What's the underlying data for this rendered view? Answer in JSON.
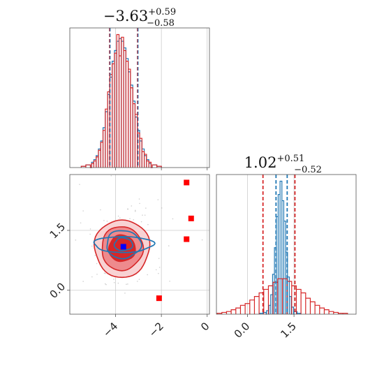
{
  "colors": {
    "blue": "#1f77b4",
    "red": "#d62728",
    "marker_blue": "#0000ff",
    "marker_red": "#ff0000"
  },
  "titles": {
    "p1": {
      "main": "−3.63",
      "sup": "+0.59",
      "sub": "−0.58"
    },
    "p2": {
      "main": "1.02",
      "sup": "+0.51",
      "sub": "−0.52"
    }
  },
  "chart_data": [
    {
      "type": "histogram",
      "panel": "marginal-p1",
      "xlim": [
        -6.0,
        0.1
      ],
      "xticks": [
        -4,
        -2,
        0
      ],
      "grid": true,
      "quantile_lines": {
        "red": [
          -4.26,
          -3.04
        ],
        "blue": [
          -4.26,
          -3.04
        ]
      },
      "series": [
        {
          "color": "blue",
          "centers": [
            -5.4,
            -5.2,
            -5.0,
            -4.9,
            -4.8,
            -4.7,
            -4.6,
            -4.5,
            -4.4,
            -4.3,
            -4.2,
            -4.1,
            -4.0,
            -3.9,
            -3.8,
            -3.7,
            -3.6,
            -3.5,
            -3.4,
            -3.3,
            -3.2,
            -3.1,
            -3.0,
            -2.9,
            -2.8,
            -2.7,
            -2.6,
            -2.5,
            -2.3,
            -2.1
          ],
          "counts": [
            1,
            2,
            4,
            6,
            9,
            14,
            20,
            30,
            42,
            55,
            68,
            80,
            88,
            95,
            97,
            95,
            90,
            82,
            72,
            62,
            50,
            38,
            28,
            20,
            14,
            9,
            6,
            3,
            2,
            1
          ]
        },
        {
          "color": "red",
          "centers": [
            -5.4,
            -5.2,
            -5.0,
            -4.9,
            -4.8,
            -4.7,
            -4.6,
            -4.5,
            -4.4,
            -4.3,
            -4.2,
            -4.1,
            -4.0,
            -3.9,
            -3.8,
            -3.7,
            -3.6,
            -3.5,
            -3.4,
            -3.3,
            -3.2,
            -3.1,
            -3.0,
            -2.9,
            -2.8,
            -2.7,
            -2.6,
            -2.5,
            -2.3,
            -2.1
          ],
          "counts": [
            1,
            2,
            3,
            5,
            8,
            13,
            19,
            28,
            44,
            57,
            70,
            78,
            86,
            100,
            84,
            98,
            88,
            80,
            74,
            60,
            48,
            40,
            26,
            22,
            12,
            10,
            5,
            4,
            2,
            1
          ]
        }
      ]
    },
    {
      "type": "histogram",
      "panel": "marginal-p2",
      "xlim": [
        -1.0,
        3.5
      ],
      "xticks": [
        0.0,
        1.5
      ],
      "grid": true,
      "quantile_lines": {
        "red": [
          0.5,
          1.53
        ],
        "blue": [
          0.92,
          1.28
        ]
      },
      "series": [
        {
          "color": "blue",
          "centers": [
            0.45,
            0.55,
            0.65,
            0.72,
            0.78,
            0.84,
            0.9,
            0.96,
            1.02,
            1.08,
            1.14,
            1.2,
            1.26,
            1.32,
            1.38,
            1.45,
            1.55,
            1.65
          ],
          "counts": [
            1,
            2,
            4,
            10,
            22,
            45,
            75,
            110,
            135,
            150,
            128,
            105,
            70,
            42,
            20,
            8,
            3,
            1
          ]
        },
        {
          "color": "red",
          "centers": [
            -0.9,
            -0.75,
            -0.6,
            -0.45,
            -0.3,
            -0.15,
            0.0,
            0.15,
            0.3,
            0.45,
            0.6,
            0.75,
            0.9,
            1.05,
            1.2,
            1.35,
            1.5,
            1.65,
            1.8,
            1.95,
            2.1,
            2.25,
            2.4,
            2.55,
            2.7,
            2.85,
            3.0,
            3.15
          ],
          "counts": [
            1,
            2,
            3,
            5,
            7,
            10,
            12,
            16,
            20,
            24,
            28,
            32,
            36,
            40,
            40,
            37,
            32,
            28,
            24,
            18,
            14,
            10,
            7,
            5,
            3,
            2,
            1,
            1
          ]
        }
      ]
    },
    {
      "type": "contour",
      "panel": "joint-p1-p2",
      "xlim": [
        -6.0,
        0.1
      ],
      "ylim": [
        -0.6,
        2.9
      ],
      "xticks": [
        -4,
        -2,
        0
      ],
      "yticks": [
        0.0,
        1.5
      ],
      "grid": true,
      "red_center": [
        -3.72,
        1.05
      ],
      "red_levels": [
        {
          "rx": 1.2,
          "ry": 0.72
        },
        {
          "rx": 0.9,
          "ry": 0.55
        },
        {
          "rx": 0.58,
          "ry": 0.33
        }
      ],
      "blue_center": [
        -3.66,
        1.15
      ],
      "blue_levels": [
        {
          "rx": 1.3,
          "ry": 0.2
        },
        {
          "rx": 0.75,
          "ry": 0.35
        },
        {
          "rx": 0.4,
          "ry": 0.16
        }
      ],
      "markers": [
        {
          "color": "marker_blue",
          "x": -3.66,
          "y": 1.09
        },
        {
          "color": "marker_red",
          "x": -0.9,
          "y": 2.7
        },
        {
          "color": "marker_red",
          "x": -0.7,
          "y": 1.8
        },
        {
          "color": "marker_red",
          "x": -0.9,
          "y": 1.28
        },
        {
          "color": "marker_red",
          "x": -2.1,
          "y": -0.2
        }
      ]
    }
  ]
}
